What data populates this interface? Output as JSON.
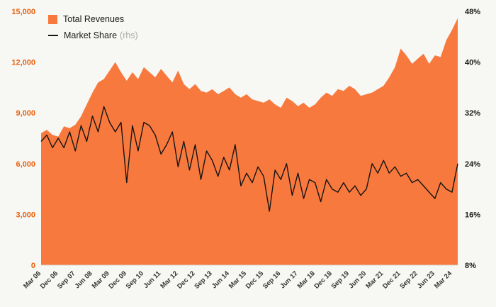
{
  "chart": {
    "legend": {
      "revenues_label": "Total Revenues",
      "market_share_label": "Market Share",
      "market_share_suffix": "(rhs)"
    },
    "colors": {
      "area": "#f8793d",
      "line": "#141414",
      "left_axis_text": "#e8610d",
      "right_axis_text": "#1a1a1a",
      "x_axis_text": "#333333",
      "baseline": "#d8d8d4",
      "background": "#f7f7f4"
    }
  },
  "chart_data": {
    "type": "combo",
    "title": "",
    "x": [
      "Mar 06",
      "Jun 06",
      "Sep 06",
      "Dec 06",
      "Mar 07",
      "Jun 07",
      "Sep 07",
      "Dec 07",
      "Mar 08",
      "Jun 08",
      "Sep 08",
      "Dec 08",
      "Mar 09",
      "Jun 09",
      "Sep 09",
      "Dec 09",
      "Mar 10",
      "Jun 10",
      "Sep 10",
      "Dec 10",
      "Mar 11",
      "Jun 11",
      "Sep 11",
      "Dec 11",
      "Mar 12",
      "Jun 12",
      "Sep 12",
      "Dec 12",
      "Mar 13",
      "Jun 13",
      "Sep 13",
      "Dec 13",
      "Mar 14",
      "Jun 14",
      "Sep 14",
      "Dec 14",
      "Mar 15",
      "Jun 15",
      "Sep 15",
      "Dec 15",
      "Mar 16",
      "Jun 16",
      "Sep 16",
      "Dec 16",
      "Mar 17",
      "Jun 17",
      "Sep 17",
      "Dec 17",
      "Mar 18",
      "Jun 18",
      "Sep 18",
      "Dec 18",
      "Mar 19",
      "Jun 19",
      "Sep 19",
      "Dec 19",
      "Mar 20",
      "Jun 20",
      "Sep 20",
      "Dec 20",
      "Mar 21",
      "Jun 21",
      "Sep 21",
      "Dec 21",
      "Mar 22",
      "Jun 22",
      "Sep 22",
      "Dec 22",
      "Mar 23",
      "Jun 23",
      "Sep 23",
      "Dec 23",
      "Mar 24",
      "Jun 24"
    ],
    "x_tick_every": 3,
    "series": [
      {
        "name": "Total Revenues",
        "type": "area",
        "axis": "left",
        "values": [
          7800,
          8000,
          7700,
          7600,
          8200,
          8100,
          8300,
          8800,
          9500,
          10200,
          10800,
          11000,
          11500,
          12000,
          11400,
          10900,
          11400,
          11000,
          11700,
          11400,
          11100,
          11600,
          11200,
          10800,
          11500,
          10700,
          10400,
          10700,
          10300,
          10200,
          10400,
          10100,
          10300,
          10500,
          10100,
          9900,
          10100,
          9800,
          9700,
          9600,
          9800,
          9500,
          9300,
          9900,
          9700,
          9400,
          9600,
          9300,
          9500,
          9900,
          10200,
          10000,
          10400,
          10300,
          10600,
          10400,
          10000,
          10100,
          10200,
          10400,
          10600,
          11100,
          11700,
          12800,
          12400,
          11900,
          12200,
          12500,
          11900,
          12400,
          12300,
          13300,
          13900,
          14600
        ]
      },
      {
        "name": "Market Share",
        "type": "line",
        "axis": "right",
        "values": [
          27.5,
          28.5,
          26.5,
          28,
          26.5,
          29,
          26,
          30,
          27.5,
          31.5,
          29,
          33,
          30.5,
          29,
          30.5,
          21,
          30,
          26,
          30.5,
          30,
          28.5,
          25.5,
          27,
          29,
          23.5,
          27.5,
          23,
          27,
          21.5,
          26,
          24.5,
          22,
          25,
          23,
          27,
          20.5,
          22.5,
          21,
          23.5,
          22,
          16.5,
          23,
          21.5,
          24,
          19,
          22.5,
          18.5,
          21.5,
          21,
          18,
          21.5,
          20,
          19.5,
          21,
          19.5,
          20.5,
          19,
          20,
          24,
          22.5,
          24.5,
          22.5,
          23.5,
          22,
          22.5,
          21,
          21.5,
          20.5,
          19.5,
          18.5,
          21,
          20,
          19.5,
          24
        ]
      }
    ],
    "left_axis": {
      "min": 0,
      "max": 15000,
      "ticks": [
        "0",
        "3,000",
        "6,000",
        "9,000",
        "12,000",
        "15,000"
      ]
    },
    "right_axis": {
      "min": 8,
      "max": 48,
      "ticks": [
        "8%",
        "16%",
        "24%",
        "32%",
        "40%",
        "48%"
      ]
    },
    "legend_position": "top-left",
    "grid": false
  }
}
